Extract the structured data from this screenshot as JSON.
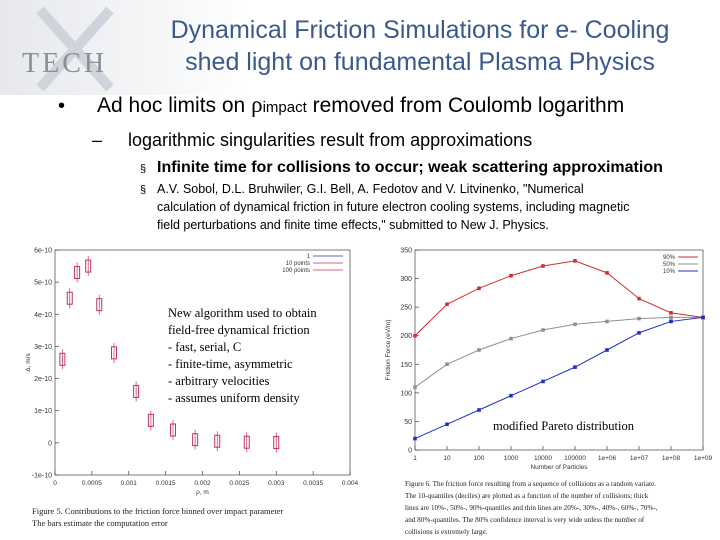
{
  "logo": "TECH",
  "title": [
    "Dynamical Friction Simulations for e- Cooling",
    "shed light on fundamental Plasma Physics"
  ],
  "bullet": {
    "before": "Ad hoc limits on ",
    "symbol": "ρ",
    "subscript": "impact",
    "after": " removed from Coulomb logarithm"
  },
  "sub_bullet": "logarithmic singularities result from approximations",
  "items": [
    [
      "Infinite time for collisions to occur;  weak scattering approximation"
    ],
    [
      "A.V. Sobol, D.L. Bruhwiler, G.I. Bell, A. Fedotov and V. Litvinenko, \"Numerical",
      "calculation of dynamical friction in future electron cooling systems, including magnetic",
      "field perturbations and finite time effects,\" submitted to New J. Physics."
    ]
  ],
  "left_plot": {
    "type": "scatter",
    "xlabel": "ρ, m",
    "ylabel": "Δ, m/s",
    "legend": [
      "1",
      "10 points",
      "100 points"
    ],
    "x": [
      0.0001,
      0.0002,
      0.0003,
      0.00045,
      0.0006,
      0.0008,
      0.0011,
      0.0013,
      0.0016,
      0.0019,
      0.0022,
      0.0026,
      0.003
    ],
    "values": [
      2.6e-10,
      4.5e-10,
      5.3e-10,
      5.5e-10,
      4.3e-10,
      2.8e-10,
      1.6e-10,
      7e-11,
      4e-11,
      1e-11,
      5e-12,
      2e-12,
      1e-12
    ],
    "color": "#c0306a",
    "xlim": [
      0,
      0.004
    ],
    "ylim": [
      -1e-10,
      6e-10
    ],
    "xticks": [
      0,
      0.0005,
      0.001,
      0.0015,
      0.002,
      0.0025,
      0.003,
      0.0035,
      0.004
    ],
    "yticks": [
      -1e-10,
      0,
      1e-10,
      2e-10,
      3e-10,
      4e-10,
      5e-10,
      6e-10
    ],
    "caption": [
      "Figure 5. Contributions to the friction force binned over impact parameter",
      "The bars estimate the computation error"
    ],
    "note": [
      "New algorithm used to obtain",
      "field-free dynamical friction",
      " - fast, serial, C",
      " - finite-time, asymmetric",
      " - arbitrary velocities",
      " - assumes uniform density"
    ]
  },
  "right_plot": {
    "type": "line",
    "log_x": true,
    "xlabel": "Number of Particles",
    "ylabel": "Friction Force (eV/m)",
    "x": [
      1,
      10,
      100,
      1000,
      10000,
      100000,
      1000000,
      10000000,
      100000000,
      1000000000
    ],
    "series": [
      {
        "name": "90%",
        "color": "#d03030",
        "values": [
          200,
          255,
          283,
          305,
          322,
          331,
          310,
          265,
          240,
          232
        ]
      },
      {
        "name": "50%",
        "color": "#909090",
        "values": [
          110,
          150,
          175,
          195,
          210,
          220,
          225,
          230,
          232,
          232
        ]
      },
      {
        "name": "10%",
        "color": "#2030c0",
        "values": [
          20,
          45,
          70,
          95,
          120,
          145,
          175,
          205,
          225,
          232
        ]
      }
    ],
    "xlim": [
      1,
      1000000000
    ],
    "ylim": [
      0,
      350
    ],
    "xticks": [
      1,
      10,
      100,
      1000,
      10000,
      100000,
      {
        "value": 1000000,
        "label": "1e+06"
      },
      {
        "value": 10000000,
        "label": "1e+07"
      },
      {
        "value": 100000000,
        "label": "1e+08"
      },
      {
        "value": 1000000000,
        "label": "1e+09"
      }
    ],
    "yticks": [
      0,
      50,
      100,
      150,
      200,
      250,
      300,
      350
    ],
    "note": "modified Pareto distribution",
    "caption": [
      "Figure 6. The friction force resulting from a sequence of collisions as a random variate.",
      "The 10-quantiles (deciles) are plotted as a function of the number of collisions; thick",
      "lines are 10%-, 50%-, 90%-quantiles and thin lines are 20%-, 30%-, 40%-, 60%-, 70%-,",
      "and 80%-quantiles. The 80% confidence interval is very wide unless the number of",
      "collisions is extremely large."
    ]
  }
}
